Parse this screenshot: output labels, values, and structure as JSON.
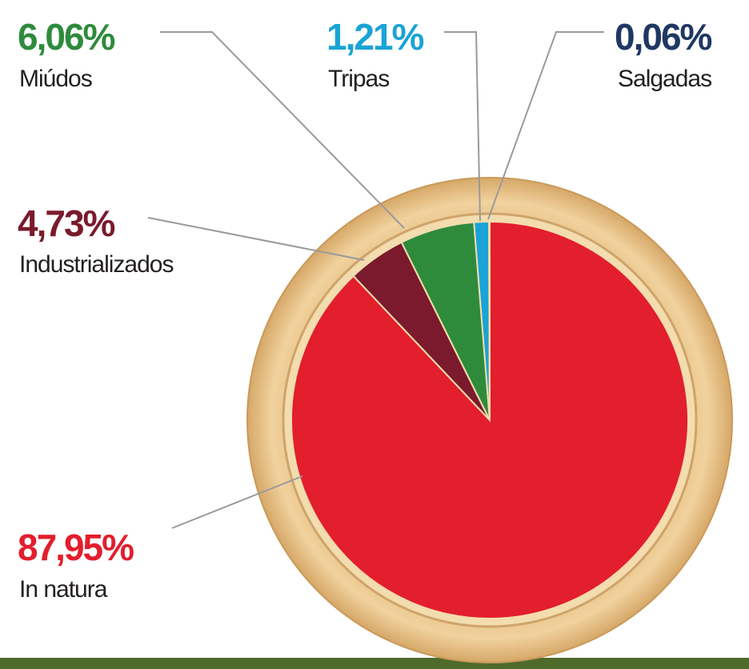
{
  "chart_data": {
    "type": "pie",
    "categories": [
      "In natura",
      "Industrializados",
      "Miúdos",
      "Tripas",
      "Salgadas"
    ],
    "values": [
      87.95,
      4.73,
      6.06,
      1.21,
      0.06
    ],
    "value_labels": [
      "87,95%",
      "4,73%",
      "6,06%",
      "1,21%",
      "0,06%"
    ],
    "colors": [
      "#e31e2d",
      "#7a1a2c",
      "#2e8b3c",
      "#1aa3d6",
      "#1f3763"
    ]
  }
}
